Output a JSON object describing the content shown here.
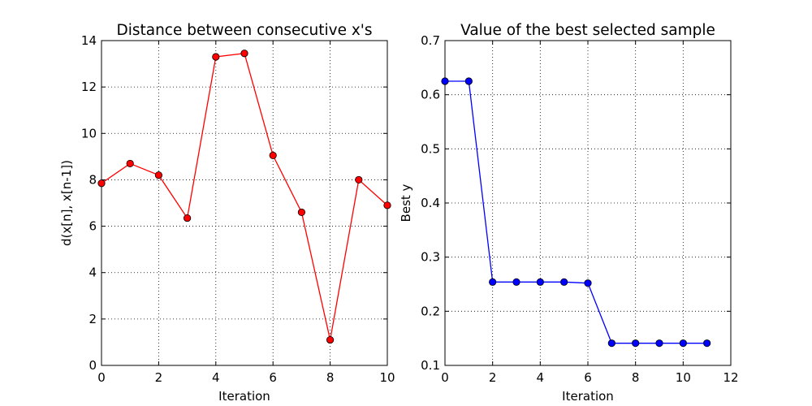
{
  "chart_data": [
    {
      "type": "line",
      "title": "Distance between consecutive x's",
      "xlabel": "Iteration",
      "ylabel": "d(x[n], x[n-1])",
      "xlim": [
        0,
        10
      ],
      "ylim": [
        0,
        14
      ],
      "xticks": [
        "0",
        "2",
        "4",
        "6",
        "8",
        "10"
      ],
      "yticks": [
        "0",
        "2",
        "4",
        "6",
        "8",
        "10",
        "12",
        "14"
      ],
      "grid": true,
      "series": [
        {
          "color": "#ff0000",
          "marker": "circle",
          "x": [
            0,
            1,
            2,
            3,
            4,
            5,
            6,
            7,
            8,
            9,
            10
          ],
          "y": [
            7.85,
            8.7,
            8.2,
            6.35,
            13.3,
            13.45,
            9.05,
            6.6,
            1.1,
            8.0,
            6.9
          ]
        }
      ]
    },
    {
      "type": "line",
      "title": "Value of the best selected sample",
      "xlabel": "Iteration",
      "ylabel": "Best y",
      "xlim": [
        0,
        12
      ],
      "ylim": [
        0.1,
        0.7
      ],
      "xticks": [
        "0",
        "2",
        "4",
        "6",
        "8",
        "10",
        "12"
      ],
      "yticks": [
        "0.1",
        "0.2",
        "0.3",
        "0.4",
        "0.5",
        "0.6",
        "0.7"
      ],
      "grid": true,
      "series": [
        {
          "color": "#0000ff",
          "marker": "circle",
          "x": [
            0,
            1,
            2,
            3,
            4,
            5,
            6,
            7,
            8,
            9,
            10,
            11
          ],
          "y": [
            0.625,
            0.625,
            0.254,
            0.254,
            0.254,
            0.254,
            0.252,
            0.141,
            0.141,
            0.141,
            0.141,
            0.141
          ]
        }
      ]
    }
  ]
}
